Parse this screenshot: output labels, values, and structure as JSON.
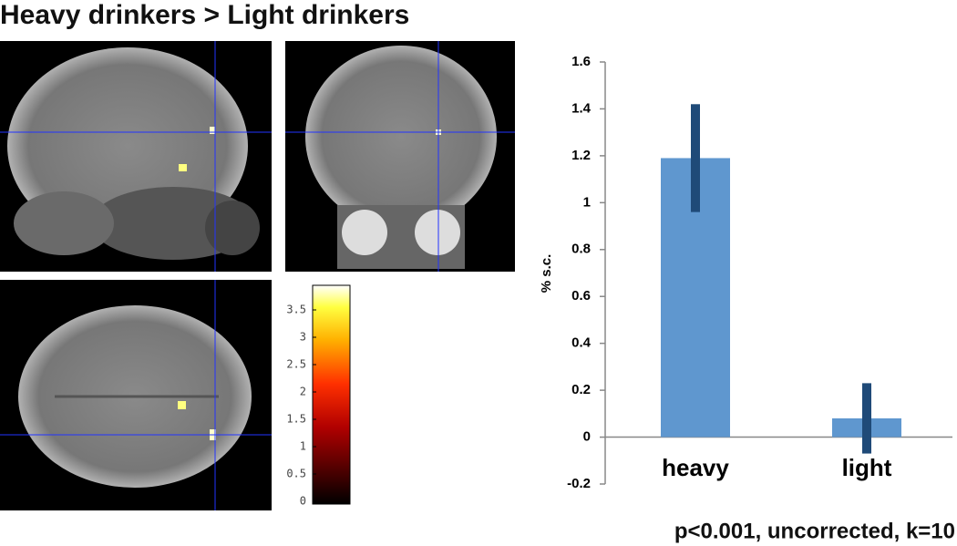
{
  "title": "Heavy drinkers > Light drinkers",
  "footnote": "p<0.001, uncorrected, k=10",
  "colorbar": {
    "lim": [
      0,
      3.95
    ],
    "ticks": [
      0,
      0.5,
      1,
      1.5,
      2,
      2.5,
      3,
      3.5
    ]
  },
  "chart_data": {
    "type": "bar",
    "ylabel": "% s.c.",
    "categories": [
      "heavy",
      "light"
    ],
    "values": [
      1.19,
      0.08
    ],
    "errors": [
      0.23,
      0.15
    ],
    "color": "#5f97cf",
    "error_color": "#1f4a78",
    "ylim": [
      -0.2,
      1.6
    ],
    "yticks": [
      -0.2,
      0,
      0.2,
      0.4,
      0.6,
      0.8,
      1,
      1.2,
      1.4,
      1.6
    ]
  }
}
